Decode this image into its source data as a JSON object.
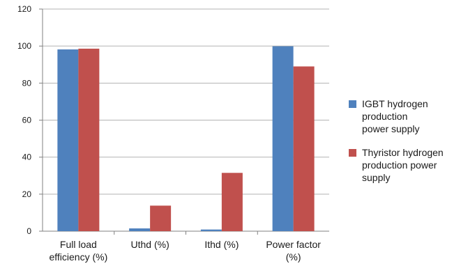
{
  "chart_data": {
    "type": "bar",
    "categories": [
      "Full load\nefficiency (%)",
      "Uthd (%)",
      "Ithd (%)",
      "Power factor\n(%)"
    ],
    "series": [
      {
        "name": "IGBT hydrogen\nproduction\npower supply",
        "color": "#4f81bd",
        "values": [
          98.2,
          1.5,
          0.9,
          99.9
        ]
      },
      {
        "name": "Thyristor hydrogen\nproduction power\nsupply",
        "color": "#c0504d",
        "values": [
          98.6,
          13.8,
          31.5,
          89.0
        ]
      }
    ],
    "ylim": [
      0,
      120
    ],
    "yticks": [
      0,
      20,
      40,
      60,
      80,
      100,
      120
    ],
    "grid": true,
    "legend_position": "right"
  }
}
